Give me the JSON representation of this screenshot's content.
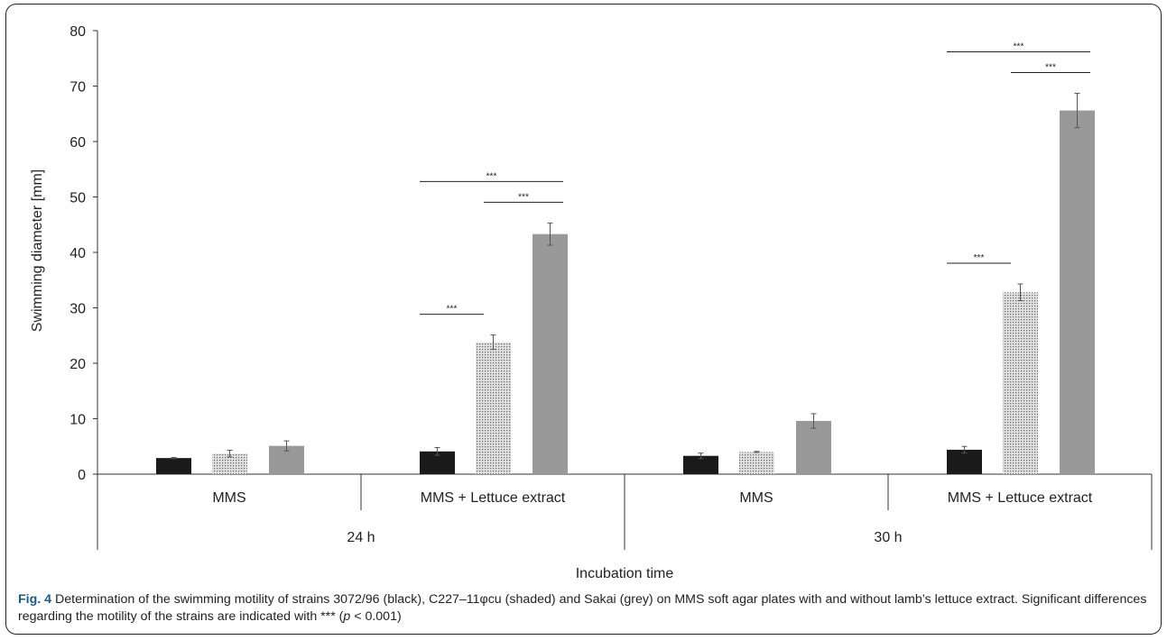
{
  "chart_data": {
    "type": "bar",
    "ylabel": "Swimming diameter [mm]",
    "xlabel": "Incubation time",
    "ylim": [
      0,
      80
    ],
    "yticks": [
      0,
      10,
      20,
      30,
      40,
      50,
      60,
      70,
      80
    ],
    "groups": [
      {
        "time": "24 h",
        "medium": "MMS",
        "values": [
          2.9,
          3.7,
          5.1
        ],
        "errors": [
          0.1,
          0.6,
          0.9
        ]
      },
      {
        "time": "24 h",
        "medium": "MMS + Lettuce extract",
        "values": [
          4.1,
          23.8,
          43.3
        ],
        "errors": [
          0.7,
          1.3,
          2.0
        ]
      },
      {
        "time": "30 h",
        "medium": "MMS",
        "values": [
          3.3,
          4.0,
          9.6
        ],
        "errors": [
          0.5,
          0.1,
          1.3
        ]
      },
      {
        "time": "30 h",
        "medium": "MMS + Lettuce extract",
        "values": [
          4.4,
          32.8,
          65.6
        ],
        "errors": [
          0.6,
          1.5,
          3.1
        ]
      }
    ],
    "series_colors": [
      "#1a1a1a",
      "shaded",
      "#999999"
    ],
    "significance": [
      {
        "group": 1,
        "from": 0,
        "to": 1,
        "label": "***"
      },
      {
        "group": 1,
        "from": 1,
        "to": 2,
        "label": "***"
      },
      {
        "group": 1,
        "from": 0,
        "to": 2,
        "label": "***"
      },
      {
        "group": 3,
        "from": 0,
        "to": 1,
        "label": "***"
      },
      {
        "group": 3,
        "from": 1,
        "to": 2,
        "label": "***"
      },
      {
        "group": 3,
        "from": 0,
        "to": 2,
        "label": "***"
      }
    ]
  },
  "caption": {
    "label": "Fig. 4",
    "text_before": " Determination of the swimming motility of strains 3072/96 (black), C227–11φcu (shaded) and Sakai (grey) on MMS soft agar plates with and without lamb’s lettuce extract. Significant differences regarding the motility of the strains are indicated with *** (",
    "p_symbol": "p",
    "text_after": " < 0.001)"
  }
}
